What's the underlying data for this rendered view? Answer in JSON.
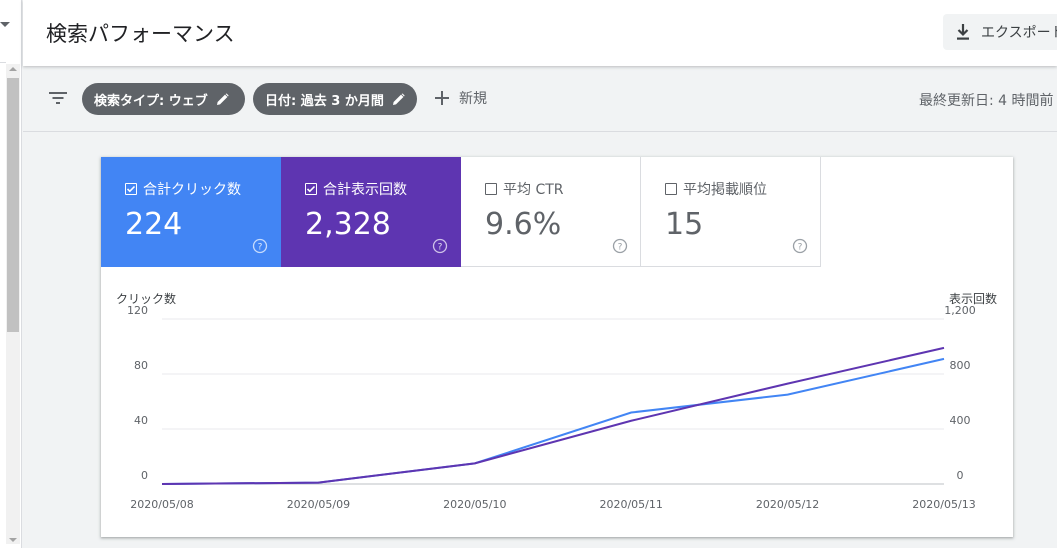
{
  "header": {
    "title": "検索パフォーマンス",
    "export_label": "エクスポート"
  },
  "filters": {
    "search_type_chip": "検索タイプ: ウェブ",
    "date_chip": "日付: 過去 3 か月間",
    "new_label": "新規",
    "last_updated": "最終更新日: 4 時間前"
  },
  "metrics": [
    {
      "label": "合計クリック数",
      "value": "224",
      "checked": true,
      "color": "#4285f4"
    },
    {
      "label": "合計表示回数",
      "value": "2,328",
      "checked": true,
      "color": "#5e35b1"
    },
    {
      "label": "平均 CTR",
      "value": "9.6%",
      "checked": false
    },
    {
      "label": "平均掲載順位",
      "value": "15",
      "checked": false
    }
  ],
  "chart_data": {
    "type": "line",
    "x": [
      "2020/05/08",
      "2020/05/09",
      "2020/05/10",
      "2020/05/11",
      "2020/05/12",
      "2020/05/13"
    ],
    "left_axis": {
      "title": "クリック数",
      "ticks": [
        "0",
        "40",
        "80",
        "120"
      ],
      "ylim": [
        0,
        120
      ]
    },
    "right_axis": {
      "title": "表示回数",
      "ticks": [
        "0",
        "400",
        "800",
        "1,200"
      ],
      "ylim": [
        0,
        1200
      ]
    },
    "series": [
      {
        "name": "合計クリック数",
        "axis": "left",
        "color": "#4285f4",
        "values": [
          0,
          1,
          15,
          52,
          65,
          91
        ]
      },
      {
        "name": "合計表示回数",
        "axis": "right",
        "color": "#5e35b1",
        "values": [
          0,
          10,
          150,
          460,
          730,
          990
        ]
      }
    ],
    "grid": true
  }
}
